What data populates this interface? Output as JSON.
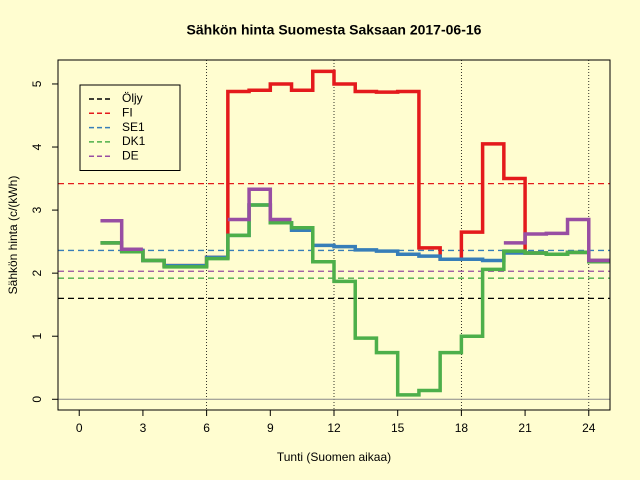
{
  "chart_data": {
    "type": "step",
    "title": "Sähkön hinta Suomesta Saksaan 2017-06-16",
    "x_label": "Tunti (Suomen aikaa)",
    "y_label": "Sähkön hinta (c/(kWh)",
    "x": [
      1,
      2,
      3,
      4,
      5,
      6,
      7,
      8,
      9,
      10,
      11,
      12,
      13,
      14,
      15,
      16,
      17,
      18,
      19,
      20,
      21,
      22,
      23,
      24,
      25
    ],
    "series": [
      {
        "name": "FI",
        "color": "#e41a1c",
        "mean": 3.42,
        "values": [
          2.48,
          2.36,
          2.2,
          2.12,
          2.12,
          2.25,
          4.88,
          4.9,
          5.0,
          4.9,
          5.2,
          5.0,
          4.88,
          4.87,
          4.88,
          2.4,
          2.22,
          2.65,
          4.05,
          3.5,
          2.32,
          2.3,
          2.33,
          2.2,
          2.2
        ]
      },
      {
        "name": "SE1",
        "color": "#377eb8",
        "mean": 2.36,
        "values": [
          2.48,
          2.36,
          2.2,
          2.12,
          2.12,
          2.25,
          2.6,
          3.08,
          2.8,
          2.68,
          2.44,
          2.42,
          2.37,
          2.35,
          2.3,
          2.27,
          2.22,
          2.22,
          2.2,
          2.32,
          2.32,
          2.3,
          2.33,
          2.2,
          2.2
        ]
      },
      {
        "name": "DK1",
        "color": "#4daf4a",
        "mean": 1.92,
        "values": [
          2.48,
          2.34,
          2.2,
          2.1,
          2.1,
          2.23,
          2.6,
          3.08,
          2.8,
          2.72,
          2.18,
          1.87,
          0.97,
          0.74,
          0.07,
          0.14,
          0.74,
          1.0,
          2.06,
          2.35,
          2.32,
          2.3,
          2.33,
          2.18,
          2.18
        ]
      },
      {
        "name": "DE",
        "color": "#984ea3",
        "mean": 2.03,
        "values": [
          2.83,
          2.38,
          null,
          null,
          null,
          null,
          2.85,
          3.33,
          2.85,
          null,
          null,
          null,
          null,
          null,
          null,
          null,
          null,
          null,
          null,
          2.48,
          2.62,
          2.63,
          2.85,
          2.2,
          2.2
        ]
      }
    ],
    "hlines": [
      {
        "name": "Öljy",
        "color": "#000000",
        "value": 1.6
      }
    ],
    "baseline": 0,
    "vlines": [
      6,
      12,
      18,
      24
    ],
    "xlim": [
      -1,
      25
    ],
    "ylim": [
      -0.17,
      5.38
    ],
    "xticks": [
      0,
      3,
      6,
      9,
      12,
      15,
      18,
      21,
      24
    ],
    "yticks": [
      0,
      1,
      2,
      3,
      4,
      5
    ],
    "legend": "topleft"
  }
}
